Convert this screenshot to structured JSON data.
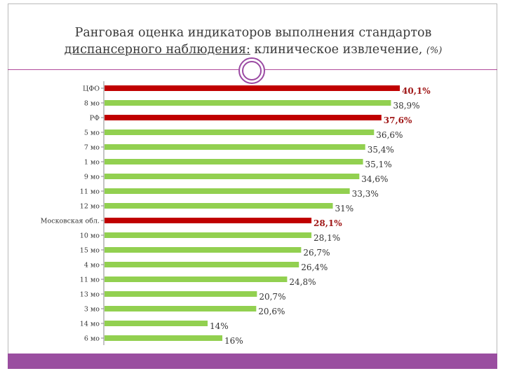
{
  "title": {
    "line1": "Ранговая оценка индикаторов выполнения стандартов",
    "line2_underlined": "диспансерного наблюдения:",
    "line2_rest": " клиническое извлечение,",
    "unit": "(%)"
  },
  "colors": {
    "highlight": "#c00000",
    "normal": "#92d050",
    "accent": "#9a4ea0"
  },
  "chart_data": {
    "type": "bar",
    "orientation": "horizontal",
    "categories": [
      "ЦФО",
      "8 мо",
      "РФ",
      "5 мо",
      "7 мо",
      "1 мо",
      "9 мо",
      "11 мо",
      "12 мо",
      "Московская обл.",
      "10 мо",
      "15 мо",
      "4 мо",
      "11 мо",
      "13 мо",
      "3 мо",
      "14 мо",
      "6 мо"
    ],
    "values": [
      40.1,
      38.9,
      37.6,
      36.6,
      35.4,
      35.1,
      34.6,
      33.3,
      31,
      28.1,
      28.1,
      26.7,
      26.4,
      24.8,
      20.7,
      20.6,
      14,
      16
    ],
    "value_labels": [
      "40,1%",
      "38,9%",
      "37,6%",
      "36,6%",
      "35,4%",
      "35,1%",
      "34,6%",
      "33,3%",
      "31%",
      "28,1%",
      "28,1%",
      "26,7%",
      "26,4%",
      "24,8%",
      "20,7%",
      "20,6%",
      "14%",
      "16%"
    ],
    "highlighted": [
      "ЦФО",
      "РФ",
      "Московская обл."
    ],
    "unit": "%"
  }
}
